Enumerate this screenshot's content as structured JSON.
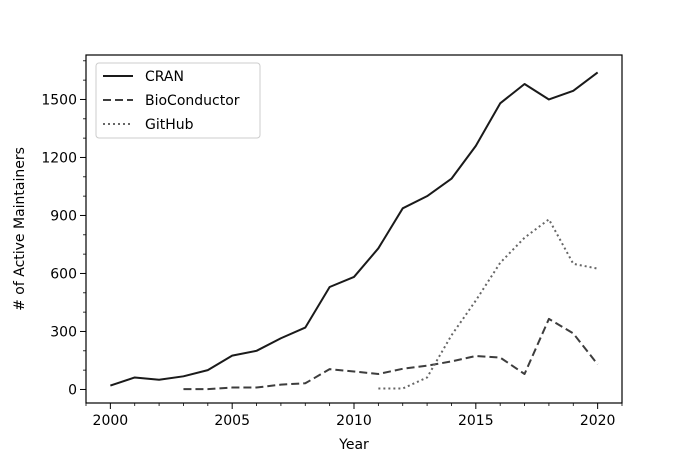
{
  "chart_data": {
    "type": "line",
    "title": "",
    "xlabel": "Year",
    "ylabel": "# of Active Maintainers",
    "xlim": [
      1999,
      2021
    ],
    "ylim": [
      -70,
      1730
    ],
    "xticks": [
      2000,
      2005,
      2010,
      2015,
      2020
    ],
    "yticks": [
      0,
      300,
      600,
      900,
      1200,
      1500
    ],
    "minor_y_step": 100,
    "minor_x_step": 1,
    "grid": false,
    "legend_position": "top-left",
    "series": [
      {
        "name": "CRAN",
        "style": "solid",
        "color": "#1a1a1a",
        "x": [
          2000,
          2001,
          2002,
          2003,
          2004,
          2005,
          2006,
          2007,
          2008,
          2009,
          2010,
          2011,
          2012,
          2013,
          2014,
          2015,
          2016,
          2017,
          2018,
          2019,
          2020
        ],
        "y": [
          20,
          62,
          50,
          68,
          100,
          175,
          200,
          265,
          320,
          530,
          582,
          730,
          937,
          1000,
          1090,
          1260,
          1480,
          1580,
          1500,
          1545,
          1640
        ]
      },
      {
        "name": "BioConductor",
        "style": "dashed",
        "color": "#3d3d3d",
        "x": [
          2003,
          2004,
          2005,
          2006,
          2007,
          2008,
          2009,
          2010,
          2011,
          2012,
          2013,
          2014,
          2015,
          2016,
          2017,
          2018,
          2019,
          2020
        ],
        "y": [
          2,
          2,
          10,
          10,
          25,
          32,
          105,
          93,
          80,
          107,
          123,
          145,
          173,
          165,
          80,
          365,
          290,
          130
        ]
      },
      {
        "name": "GitHub",
        "style": "dotted",
        "color": "#666666",
        "x": [
          2011,
          2012,
          2013,
          2014,
          2015,
          2016,
          2017,
          2018,
          2019,
          2020
        ],
        "y": [
          5,
          5,
          62,
          280,
          460,
          655,
          785,
          880,
          650,
          625
        ]
      }
    ]
  }
}
